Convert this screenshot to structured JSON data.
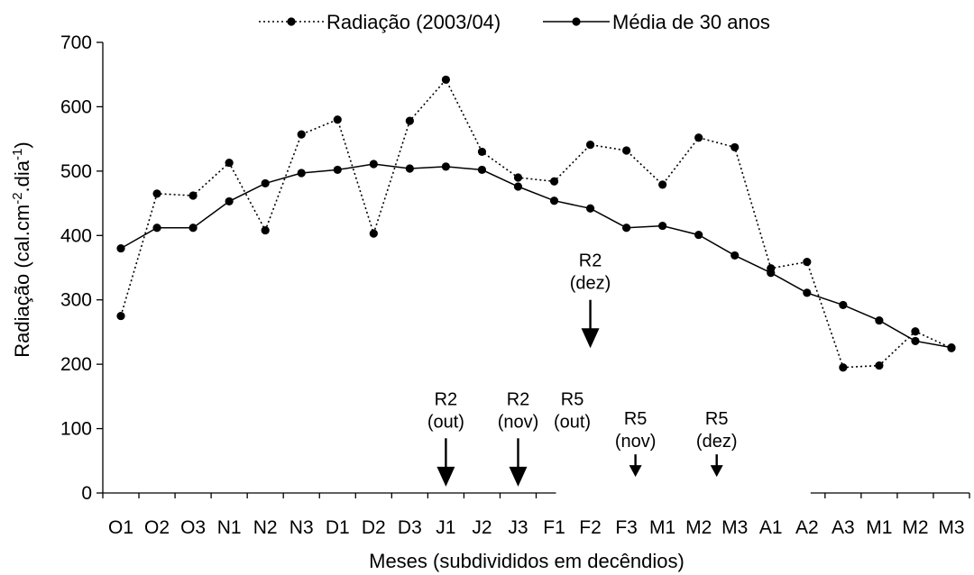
{
  "chart_data": {
    "type": "line",
    "xlabel": "Meses (subdivididos em decêndios)",
    "ylabel": "Radiação (cal.cm",
    "ylabel_sup1": "-2",
    "ylabel_mid": ".dia",
    "ylabel_sup2": "-1",
    "ylabel_end": ")",
    "ylim": [
      0,
      700
    ],
    "yticks": [
      0,
      100,
      200,
      300,
      400,
      500,
      600,
      700
    ],
    "categories": [
      "O1",
      "O2",
      "O3",
      "N1",
      "N2",
      "N3",
      "D1",
      "D2",
      "D3",
      "J1",
      "J2",
      "J3",
      "F1",
      "F2",
      "F3",
      "M1",
      "M2",
      "M3",
      "A1",
      "A2",
      "A3",
      "M1",
      "M2",
      "M3"
    ],
    "legend_position": "top",
    "series": [
      {
        "name": "Radiação (2003/04)",
        "style": "dotted",
        "color": "#000000",
        "values": [
          275,
          465,
          462,
          513,
          408,
          557,
          580,
          403,
          578,
          642,
          530,
          490,
          484,
          541,
          532,
          479,
          552,
          537,
          349,
          359,
          195,
          198,
          251,
          225
        ]
      },
      {
        "name": "Média de 30 anos",
        "style": "solid",
        "color": "#000000",
        "values": [
          380,
          412,
          412,
          453,
          481,
          497,
          502,
          511,
          504,
          507,
          502,
          476,
          454,
          442,
          412,
          415,
          401,
          369,
          342,
          311,
          292,
          268,
          236,
          226
        ]
      }
    ],
    "annotations": [
      {
        "lines": [
          "R2",
          "(out)"
        ],
        "x": 9,
        "y_tip": 10,
        "y_tail": 85,
        "head": "large"
      },
      {
        "lines": [
          "R2",
          "(nov)"
        ],
        "x": 11,
        "y_tip": 10,
        "y_tail": 85,
        "head": "large"
      },
      {
        "lines": [
          "R5",
          "(out)"
        ],
        "x": 12.5,
        "y_tip": null,
        "y_tail": null,
        "head": "none"
      },
      {
        "lines": [
          "R2",
          "(dez)"
        ],
        "x": 13,
        "y_tip": 225,
        "y_tail": 300,
        "head": "large"
      },
      {
        "lines": [
          "R5",
          "(nov)"
        ],
        "x": 14.25,
        "y_tip": 25,
        "y_tail": 60,
        "head": "small"
      },
      {
        "lines": [
          "R5",
          "(dez)"
        ],
        "x": 16.5,
        "y_tip": 25,
        "y_tail": 60,
        "head": "small"
      }
    ],
    "axis_break": {
      "from": 12.55,
      "to": 19.6
    }
  }
}
